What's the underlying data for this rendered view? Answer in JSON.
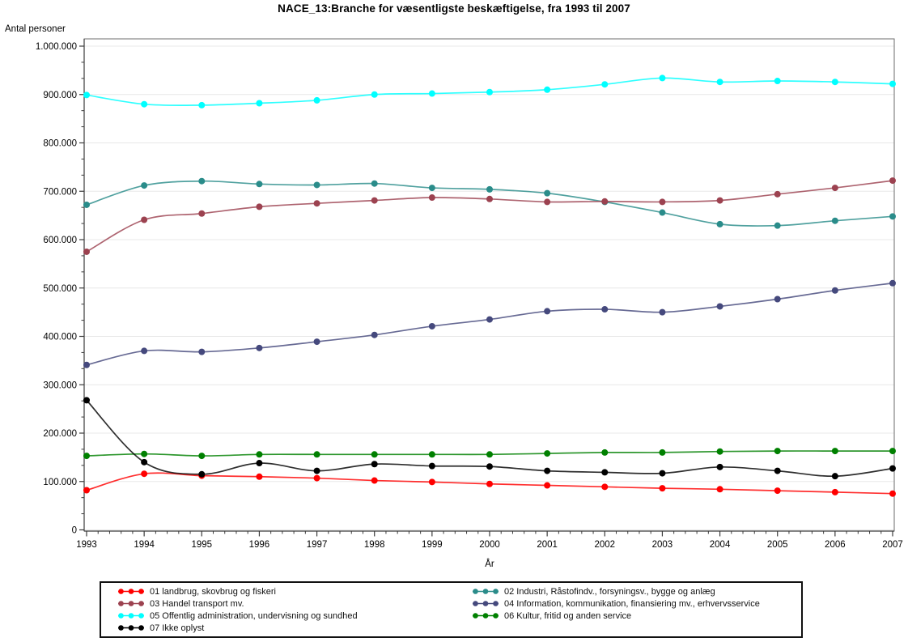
{
  "title": "NACE_13:Branche for væsentligste beskæftigelse, fra 1993 til 2007",
  "chart_data": {
    "type": "line",
    "title": "NACE_13:Branche for væsentligste beskæftigelse, fra 1993 til 2007",
    "xlabel": "År",
    "ylabel": "Antal personer",
    "x": [
      1993,
      1994,
      1995,
      1996,
      1997,
      1998,
      1999,
      2000,
      2001,
      2002,
      2003,
      2004,
      2005,
      2006,
      2007
    ],
    "ylim": [
      0,
      1000000
    ],
    "y_tick_interval": 100000,
    "y_tick_labels": [
      "0",
      "100.000",
      "200.000",
      "300.000",
      "400.000",
      "500.000",
      "600.000",
      "700.000",
      "800.000",
      "900.000",
      "1.000.000"
    ],
    "grid": "horizontal",
    "legend_position": "bottom-box",
    "marker": "filled-circle",
    "line_style": "smooth",
    "series": [
      {
        "label": "01 landbrug, skovbrug og fiskeri",
        "color": "#FF0000",
        "values": [
          82000,
          116000,
          112000,
          110000,
          107000,
          102000,
          99000,
          95000,
          92000,
          89000,
          86000,
          84000,
          81000,
          78000,
          75000
        ]
      },
      {
        "label": "02 Industri, Råstofindv., forsyningsv., bygge og anlæg",
        "color": "#2A8C8A",
        "values": [
          672000,
          712000,
          721000,
          715000,
          713000,
          716000,
          707000,
          704000,
          696000,
          678000,
          656000,
          632000,
          629000,
          639000,
          648000
        ]
      },
      {
        "label": "03 Handel transport mv.",
        "color": "#9C4250",
        "values": [
          575000,
          641000,
          654000,
          668000,
          675000,
          681000,
          687000,
          684000,
          678000,
          679000,
          678000,
          681000,
          694000,
          707000,
          722000
        ]
      },
      {
        "label": "04 Information, kommunikation, finansiering mv., erhvervsservice",
        "color": "#45497D",
        "values": [
          341000,
          370000,
          368000,
          376000,
          389000,
          403000,
          421000,
          435000,
          452000,
          456000,
          450000,
          462000,
          477000,
          495000,
          510000
        ]
      },
      {
        "label": "05 Offentlig administration, undervisning og sundhed",
        "color": "#00FFFF",
        "values": [
          899000,
          880000,
          878000,
          882000,
          888000,
          900000,
          902000,
          905000,
          910000,
          921000,
          934000,
          926000,
          928000,
          926000,
          922000
        ]
      },
      {
        "label": "06 Kultur, fritid og anden service",
        "color": "#008000",
        "values": [
          153000,
          157000,
          153000,
          156000,
          156000,
          156000,
          156000,
          156000,
          158000,
          160000,
          160000,
          162000,
          163000,
          163000,
          163000
        ]
      },
      {
        "label": "07 Ikke oplyst",
        "color": "#000000",
        "values": [
          268000,
          140000,
          115000,
          138000,
          122000,
          136000,
          132000,
          131000,
          122000,
          119000,
          117000,
          130000,
          122000,
          111000,
          127000
        ]
      }
    ]
  },
  "style_colors": {
    "grid": "#E8E8E8",
    "frame": "#6E6E6E",
    "axis": "#3C3C3C",
    "tick_text": "#000000"
  }
}
